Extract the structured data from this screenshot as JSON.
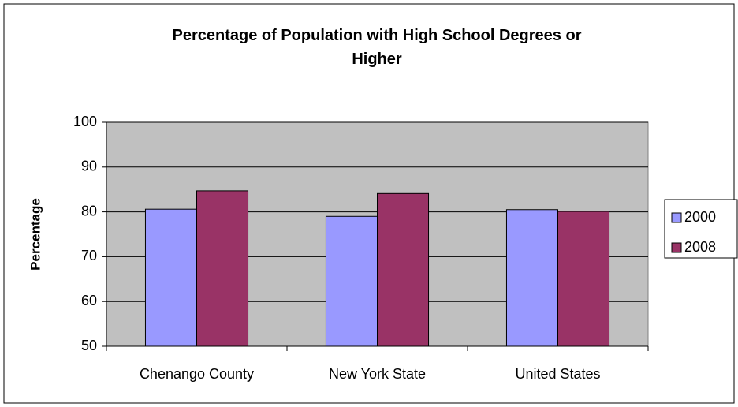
{
  "chart_data": {
    "type": "bar",
    "title": "Percentage of Population with High School Degrees or Higher",
    "y_label": "Percentage",
    "categories": [
      "Chenango County",
      "New York State",
      "United States"
    ],
    "series": [
      {
        "name": "2000",
        "color": "#9999ff",
        "values": [
          80.6,
          79.0,
          80.5
        ]
      },
      {
        "name": "2008",
        "color": "#993366",
        "values": [
          84.7,
          84.1,
          80.1
        ]
      }
    ],
    "ylim": [
      50,
      100
    ],
    "yticks": [
      50,
      60,
      70,
      80,
      90,
      100
    ],
    "grid": true,
    "legend": "right"
  }
}
